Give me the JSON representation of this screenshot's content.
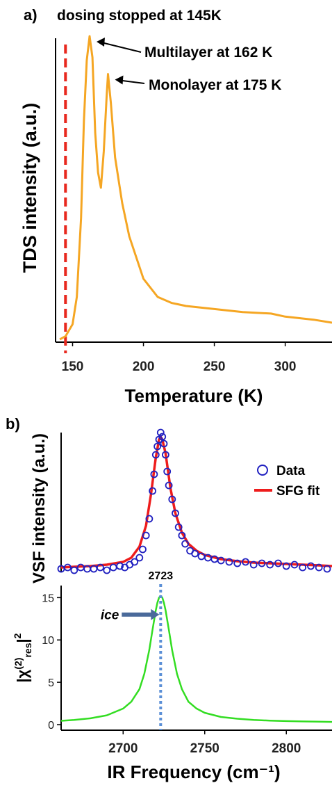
{
  "panel_a": {
    "label": "a)",
    "note": "dosing stopped at 145K",
    "annotations": [
      {
        "text": "Multilayer at 162 K",
        "x": 162,
        "y": 1.0
      },
      {
        "text": "Monolayer at 175 K",
        "x": 175,
        "y": 0.875
      }
    ]
  },
  "panel_b": {
    "label": "b)"
  },
  "colors": {
    "tds_line": "#f5a623",
    "dosing_line": "#e8281e",
    "data_markers": "#2020c0",
    "fit_line": "#ee1c1c",
    "chi_line": "#33dd22",
    "peak_marker": "#5b8fd6",
    "ice_arrow": "#4a6a9a"
  },
  "chart_data": [
    {
      "type": "line",
      "title": "",
      "xlabel": "Temperature (K)",
      "ylabel": "TDS intensity (a.u.)",
      "xlim": [
        138,
        333
      ],
      "ylim": [
        0,
        1
      ],
      "xticks": [
        150,
        200,
        250,
        300
      ],
      "y_tick_labels": false,
      "vertical_marker": {
        "x": 145,
        "style": "dashed",
        "label": "dosing stopped at 145K"
      },
      "series": [
        {
          "name": "",
          "x": [
            141,
            145,
            150,
            153,
            156,
            158,
            160,
            162,
            164,
            166,
            168,
            170,
            172,
            174,
            175,
            177,
            180,
            185,
            190,
            200,
            210,
            220,
            230,
            250,
            270,
            290,
            300,
            310,
            320,
            333
          ],
          "y": [
            0.0,
            0.01,
            0.05,
            0.14,
            0.4,
            0.72,
            0.92,
            1.0,
            0.93,
            0.68,
            0.55,
            0.5,
            0.62,
            0.8,
            0.875,
            0.78,
            0.6,
            0.45,
            0.34,
            0.2,
            0.14,
            0.12,
            0.11,
            0.1,
            0.09,
            0.085,
            0.075,
            0.07,
            0.065,
            0.055
          ]
        }
      ]
    },
    {
      "type": "scatter",
      "title": "",
      "xlabel": "",
      "ylabel": "VSF intensity (a.u.)",
      "xlim": [
        2662,
        2828
      ],
      "ylim": [
        0,
        1
      ],
      "y_tick_labels": false,
      "legend": {
        "placement": "top-right",
        "entries": [
          "Data",
          "SFG fit"
        ]
      },
      "series": [
        {
          "name": "Data",
          "x": [
            2662,
            2666,
            2670,
            2674,
            2678,
            2682,
            2686,
            2690,
            2694,
            2698,
            2701,
            2704,
            2707,
            2710,
            2712,
            2714,
            2716,
            2718,
            2719,
            2720,
            2721,
            2722,
            2723,
            2724,
            2725,
            2726,
            2727,
            2728,
            2730,
            2732,
            2734,
            2736,
            2738,
            2741,
            2744,
            2748,
            2752,
            2756,
            2760,
            2765,
            2770,
            2775,
            2780,
            2785,
            2790,
            2795,
            2800,
            2805,
            2810,
            2815,
            2820,
            2825
          ],
          "y": [
            0.02,
            0.03,
            0.01,
            0.03,
            0.02,
            0.02,
            0.03,
            0.01,
            0.03,
            0.04,
            0.03,
            0.05,
            0.07,
            0.1,
            0.16,
            0.26,
            0.38,
            0.58,
            0.7,
            0.84,
            0.9,
            0.95,
            1.0,
            0.97,
            0.92,
            0.84,
            0.72,
            0.62,
            0.52,
            0.42,
            0.32,
            0.26,
            0.2,
            0.15,
            0.13,
            0.11,
            0.1,
            0.09,
            0.08,
            0.07,
            0.06,
            0.07,
            0.05,
            0.06,
            0.05,
            0.06,
            0.04,
            0.05,
            0.03,
            0.04,
            0.03,
            0.02
          ]
        },
        {
          "name": "SFG fit",
          "x": [
            2662,
            2670,
            2680,
            2690,
            2700,
            2705,
            2710,
            2714,
            2717,
            2720,
            2722,
            2723,
            2724,
            2726,
            2729,
            2732,
            2736,
            2740,
            2745,
            2750,
            2760,
            2770,
            2780,
            2790,
            2800,
            2810,
            2820,
            2828
          ],
          "y": [
            0.03,
            0.035,
            0.04,
            0.05,
            0.07,
            0.1,
            0.18,
            0.33,
            0.55,
            0.82,
            0.95,
            0.97,
            0.95,
            0.85,
            0.6,
            0.42,
            0.28,
            0.2,
            0.15,
            0.12,
            0.09,
            0.075,
            0.065,
            0.06,
            0.055,
            0.05,
            0.045,
            0.04
          ]
        }
      ]
    },
    {
      "type": "line",
      "title": "",
      "xlabel": "IR Frequency (cm⁻¹)",
      "ylabel": "|χ(2)res|2",
      "xlim": [
        2662,
        2828
      ],
      "ylim": [
        0,
        17
      ],
      "xticks": [
        2700,
        2750,
        2800
      ],
      "yticks": [
        0,
        5,
        10,
        15
      ],
      "vertical_marker": {
        "x": 2723,
        "style": "dotted",
        "label": "2723"
      },
      "annotation": {
        "text": "ice",
        "x": 2723,
        "y": 13
      },
      "series": [
        {
          "name": "",
          "x": [
            2662,
            2670,
            2680,
            2690,
            2700,
            2705,
            2710,
            2713,
            2716,
            2718,
            2720,
            2721,
            2722,
            2723,
            2724,
            2725,
            2726,
            2728,
            2730,
            2733,
            2736,
            2740,
            2745,
            2750,
            2760,
            2770,
            2780,
            2790,
            2800,
            2810,
            2820,
            2828
          ],
          "y": [
            0.45,
            0.55,
            0.75,
            1.1,
            1.9,
            2.7,
            4.2,
            6.0,
            8.8,
            11.2,
            13.5,
            14.4,
            15.0,
            15.2,
            15.0,
            14.4,
            13.5,
            11.2,
            8.8,
            6.0,
            4.2,
            2.7,
            1.9,
            1.4,
            0.9,
            0.7,
            0.55,
            0.48,
            0.42,
            0.38,
            0.35,
            0.32
          ]
        }
      ]
    }
  ]
}
